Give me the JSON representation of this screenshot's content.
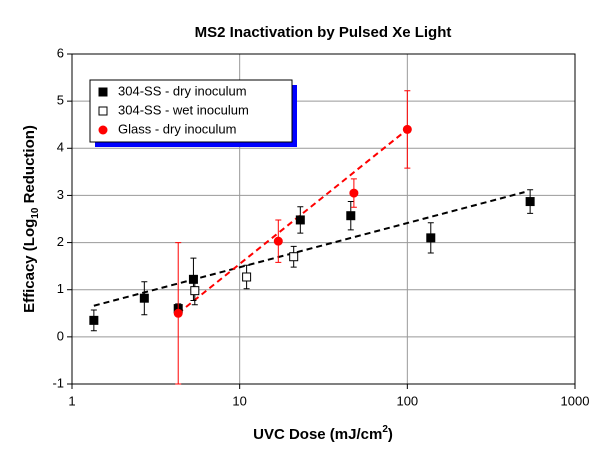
{
  "chart_data": {
    "type": "scatter",
    "title": "MS2 Inactivation by Pulsed Xe Light",
    "xlabel": {
      "text": "UVC Dose (mJ/cm",
      "sup": "2",
      "tail": ")"
    },
    "ylabel": {
      "text": "Efficacy (Log",
      "sub": "10",
      "tail": " Reduction)"
    },
    "xscale": "log",
    "xlim": [
      1,
      1000
    ],
    "xticks": [
      1,
      10,
      100,
      1000
    ],
    "ylim": [
      -1,
      6
    ],
    "yticks": [
      -1,
      0,
      1,
      2,
      3,
      4,
      5,
      6
    ],
    "grid": true,
    "legend": "upper left",
    "series": [
      {
        "name": "304-SS - dry inoculum",
        "color": "#000000",
        "marker": "square",
        "x": [
          1.35,
          2.7,
          4.3,
          5.3,
          23,
          46,
          138,
          540
        ],
        "values": [
          0.35,
          0.82,
          0.6,
          1.22,
          2.48,
          2.57,
          2.1,
          2.87
        ],
        "errors": [
          0.22,
          0.35,
          0.1,
          0.45,
          0.28,
          0.3,
          0.32,
          0.25
        ]
      },
      {
        "name": "304-SS - wet inoculum",
        "color": "#ffffff",
        "marker": "open-square",
        "x": [
          5.4,
          11,
          21
        ],
        "values": [
          0.98,
          1.27,
          1.7
        ],
        "errors": [
          0.3,
          0.25,
          0.22
        ]
      },
      {
        "name": "Glass - dry inoculum",
        "color": "#ff0000",
        "marker": "circle",
        "x": [
          4.3,
          17,
          48,
          100
        ],
        "values": [
          0.5,
          2.03,
          3.05,
          4.4
        ],
        "errors": [
          1.5,
          0.45,
          0.3,
          0.82
        ]
      }
    ],
    "trend_lines": [
      {
        "color": "#000000",
        "x": [
          1.35,
          500
        ],
        "values": [
          0.66,
          3.07
        ]
      },
      {
        "color": "#ff0000",
        "x": [
          4.3,
          100
        ],
        "values": [
          0.5,
          4.4
        ]
      }
    ]
  }
}
